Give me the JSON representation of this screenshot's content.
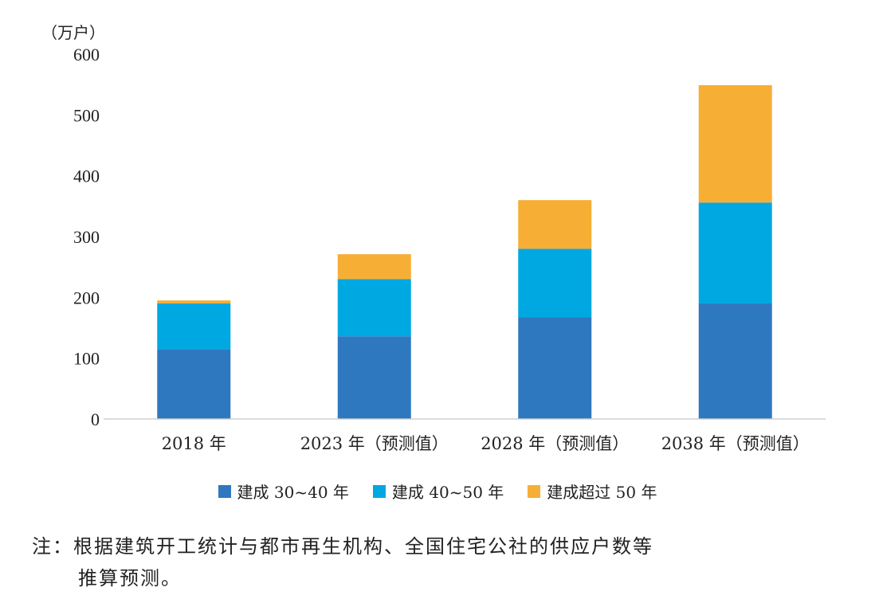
{
  "chart_data": {
    "type": "bar",
    "stacked": true,
    "unit_label": "（万户）",
    "categories": [
      "2018 年",
      "2023 年（预测值）",
      "2028 年（预测值）",
      "2038 年（预测值）"
    ],
    "series": [
      {
        "name": "建成 30~40 年",
        "color": "#2E78BF",
        "values": [
          115,
          136,
          167,
          190
        ]
      },
      {
        "name": "建成 40~50 年",
        "color": "#00A8E1",
        "values": [
          75,
          94,
          113,
          166
        ]
      },
      {
        "name": "建成超过 50 年",
        "color": "#F7AE35",
        "values": [
          5,
          41,
          80,
          193
        ]
      }
    ],
    "yticks": [
      "0",
      "100",
      "200",
      "300",
      "400",
      "500",
      "600"
    ],
    "ylim": [
      0,
      600
    ],
    "legend_position": "bottom"
  },
  "note": {
    "line1": "注：根据建筑开工统计与都市再生机构、全国住宅公社的供应户数等",
    "line2": "推算预测。"
  }
}
